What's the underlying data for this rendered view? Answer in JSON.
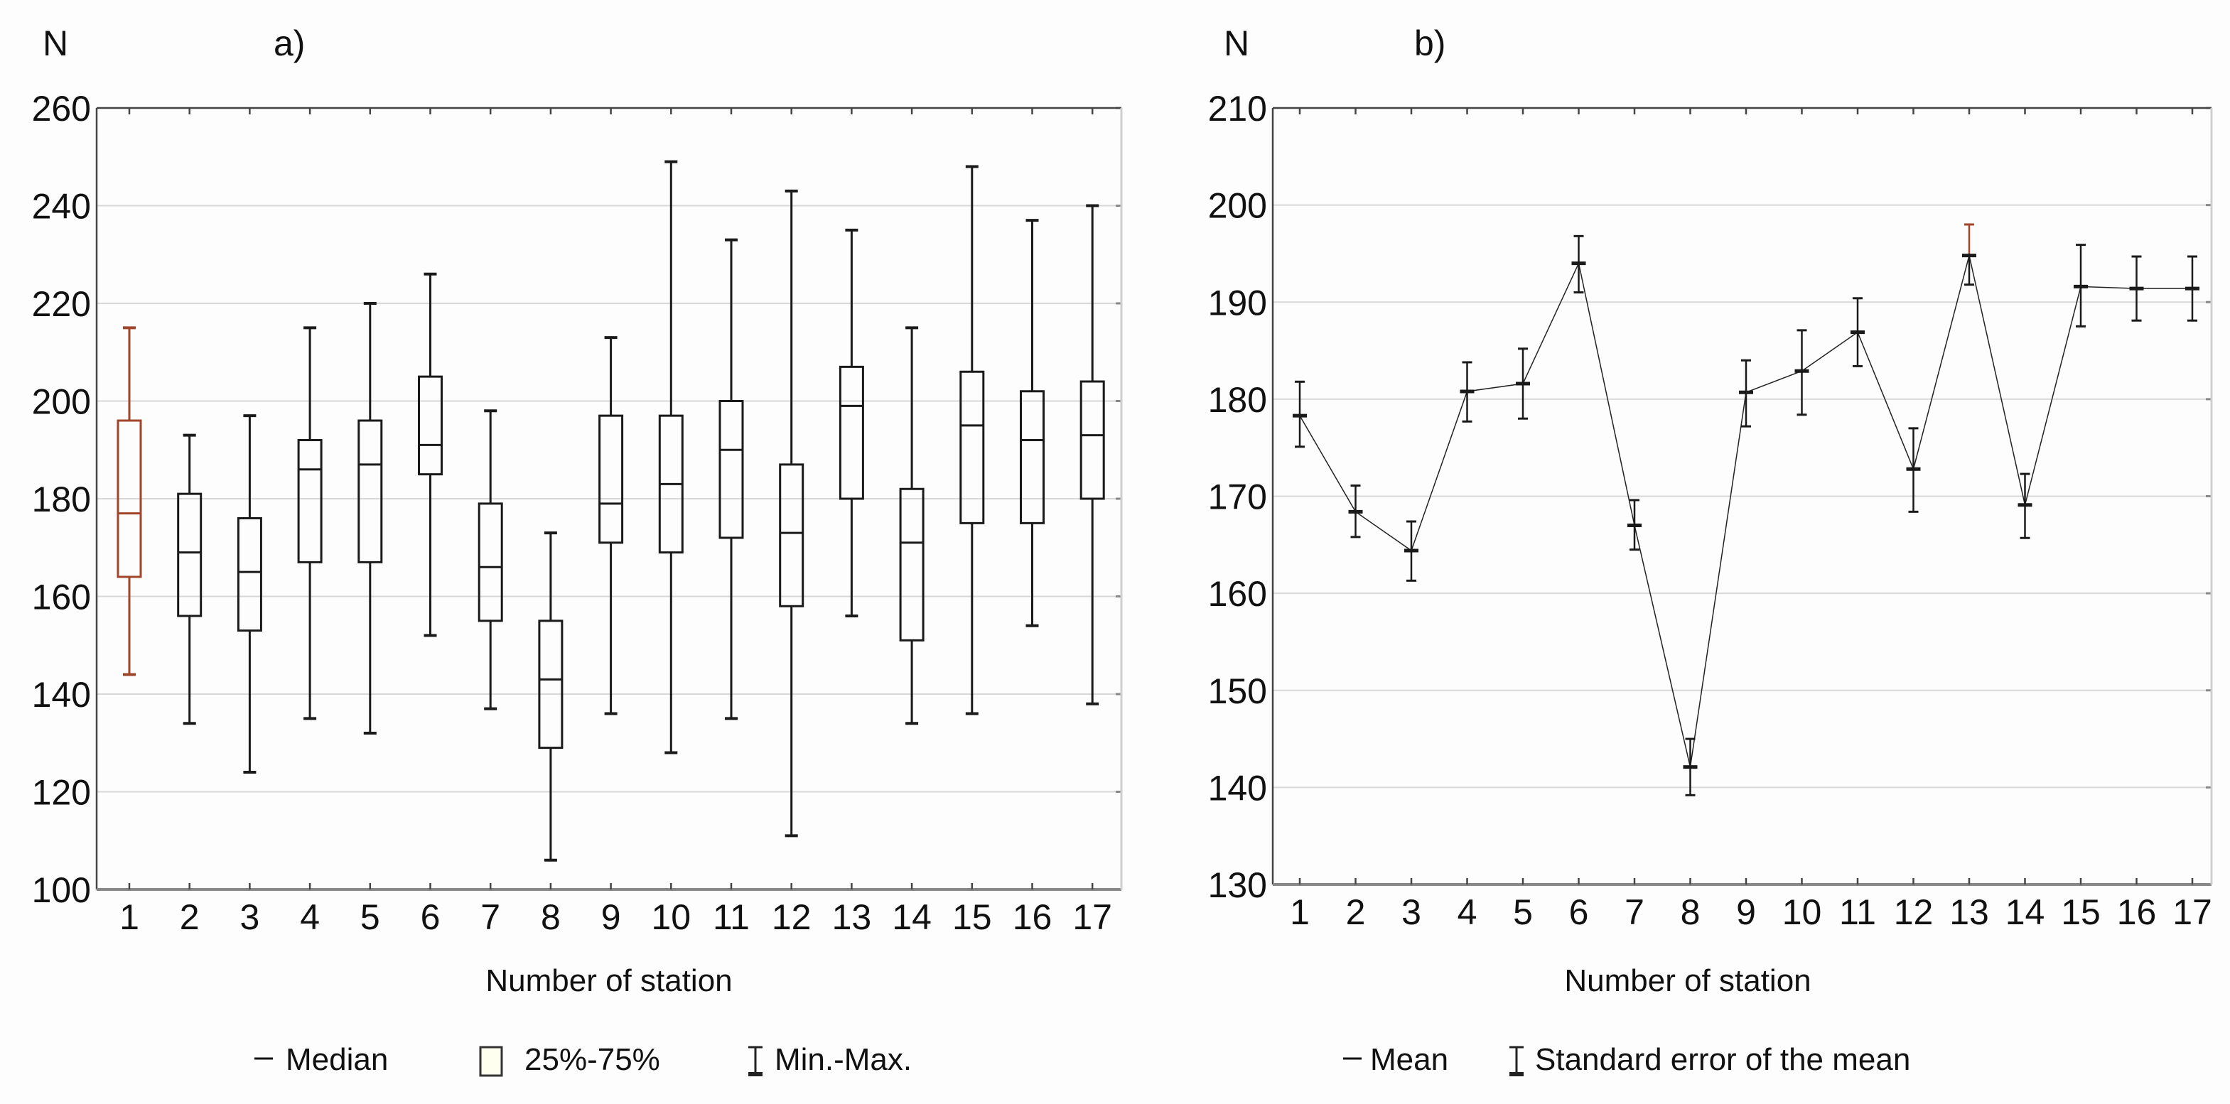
{
  "colors": {
    "axis": "#444444",
    "grid": "#d8d8d8",
    "mark": "#1a1a1a",
    "highlight": "#a0452a"
  },
  "chart_data": [
    {
      "type": "box",
      "panel_label": "a)",
      "ylabel": "N",
      "xlabel": "Number of station",
      "ylim": [
        100,
        260
      ],
      "yticks": [
        100,
        120,
        140,
        160,
        180,
        200,
        220,
        240,
        260
      ],
      "categories": [
        "1",
        "2",
        "3",
        "4",
        "5",
        "6",
        "7",
        "8",
        "9",
        "10",
        "11",
        "12",
        "13",
        "14",
        "15",
        "16",
        "17"
      ],
      "highlight_index": 0,
      "series": {
        "min": [
          144,
          134,
          124,
          135,
          132,
          152,
          137,
          106,
          136,
          128,
          135,
          111,
          156,
          134,
          136,
          154,
          138
        ],
        "q1": [
          164,
          156,
          153,
          167,
          167,
          185,
          155,
          129,
          171,
          169,
          172,
          158,
          180,
          151,
          175,
          175,
          180
        ],
        "median": [
          177,
          169,
          165,
          186,
          187,
          191,
          166,
          143,
          179,
          183,
          190,
          173,
          199,
          171,
          195,
          192,
          193
        ],
        "q3": [
          196,
          181,
          176,
          192,
          196,
          205,
          179,
          155,
          197,
          197,
          200,
          187,
          207,
          182,
          206,
          202,
          204
        ],
        "max": [
          215,
          193,
          197,
          215,
          220,
          226,
          198,
          173,
          213,
          249,
          233,
          243,
          235,
          215,
          248,
          237,
          240
        ]
      },
      "legend": {
        "median": "Median",
        "box": "25%-75%",
        "whisker": "Min.-Max."
      }
    },
    {
      "type": "line",
      "panel_label": "b)",
      "ylabel": "N",
      "xlabel": "Number of station",
      "ylim": [
        130,
        210
      ],
      "yticks": [
        130,
        140,
        150,
        160,
        170,
        180,
        190,
        200,
        210
      ],
      "categories": [
        "1",
        "2",
        "3",
        "4",
        "5",
        "6",
        "7",
        "8",
        "9",
        "10",
        "11",
        "12",
        "13",
        "14",
        "15",
        "16",
        "17"
      ],
      "highlight_index": 12,
      "series": {
        "mean": [
          178.3,
          168.4,
          164.4,
          180.8,
          181.6,
          194.0,
          167.0,
          142.1,
          180.7,
          182.9,
          186.9,
          172.8,
          194.8,
          169.1,
          191.6,
          191.4,
          191.4
        ],
        "se_lower": [
          175.1,
          165.8,
          161.3,
          177.7,
          178.0,
          191.0,
          164.5,
          139.2,
          177.2,
          178.4,
          183.4,
          168.4,
          191.8,
          165.7,
          187.5,
          188.1,
          188.1
        ],
        "se_upper": [
          181.8,
          171.1,
          167.4,
          183.8,
          185.2,
          196.8,
          169.6,
          145.0,
          184.0,
          187.1,
          190.4,
          177.0,
          198.0,
          172.3,
          195.9,
          194.7,
          194.7
        ]
      },
      "legend": {
        "mean": "Mean",
        "whisker": "Standard error of the mean"
      }
    }
  ]
}
